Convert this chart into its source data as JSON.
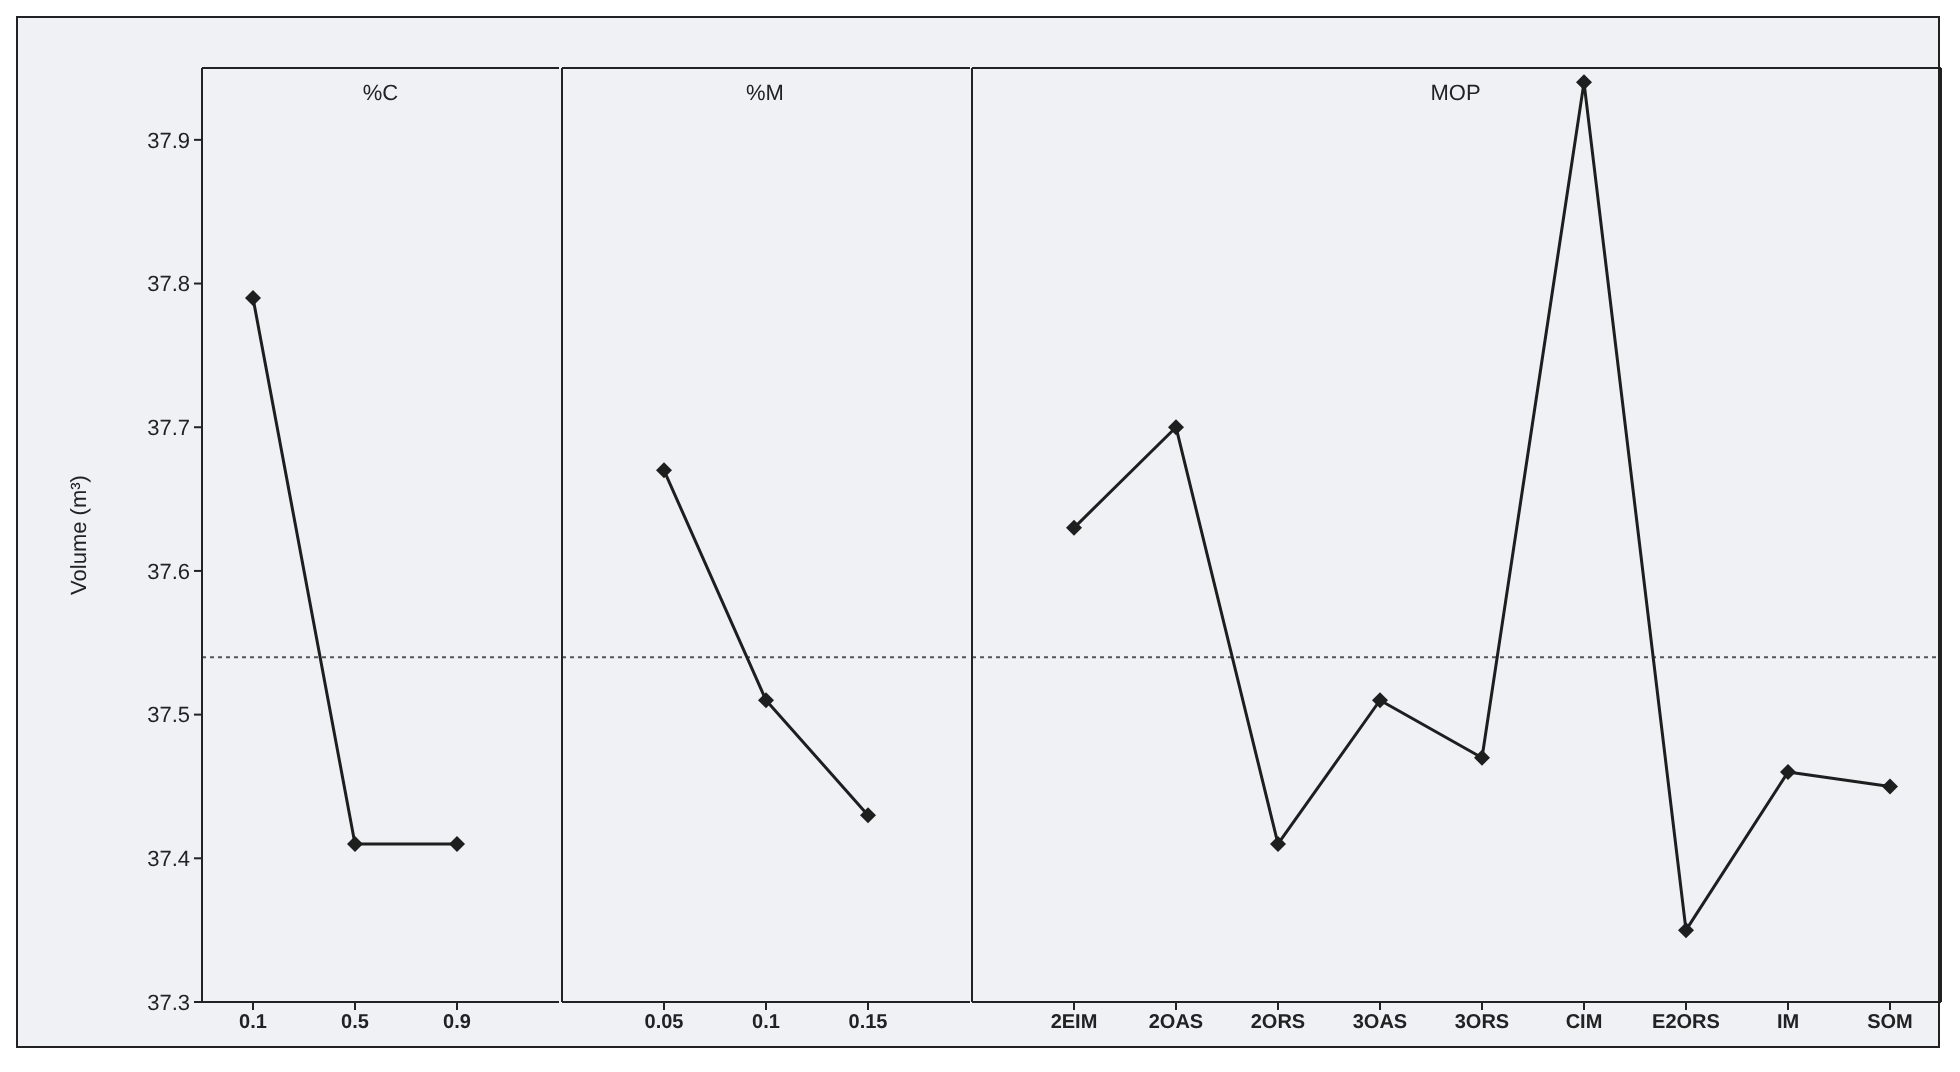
{
  "chart_data": [
    {
      "type": "line",
      "title": "%C",
      "ylabel": "Volume (m³)",
      "categories": [
        "0.1",
        "0.5",
        "0.9"
      ],
      "series": [
        {
          "color": "#1e1e1e",
          "values": [
            37.79,
            37.41,
            37.41
          ]
        }
      ],
      "ylim": [
        37.3,
        37.95
      ],
      "yticks": [
        37.3,
        37.4,
        37.5,
        37.6,
        37.7,
        37.8,
        37.9
      ],
      "marker": "diamond",
      "line_style": "solid",
      "ref_lines": [
        {
          "axis": "y",
          "value": 37.54,
          "line_style": "dotted",
          "color": "#555555"
        }
      ]
    },
    {
      "type": "line",
      "title": "%M",
      "categories": [
        "0.05",
        "0.1",
        "0.15"
      ],
      "series": [
        {
          "color": "#1e1e1e",
          "values": [
            37.67,
            37.51,
            37.43
          ]
        }
      ],
      "ylim": [
        37.3,
        37.95
      ],
      "yticks": [
        37.3,
        37.4,
        37.5,
        37.6,
        37.7,
        37.8,
        37.9
      ],
      "tick_labels": "x",
      "marker": "diamond",
      "line_style": "solid",
      "ref_lines": [
        {
          "axis": "y",
          "value": 37.54,
          "line_style": "dotted",
          "color": "#555555"
        }
      ]
    },
    {
      "type": "line",
      "title": "MOP",
      "categories": [
        "2EIM",
        "2OAS",
        "2ORS",
        "3OAS",
        "3ORS",
        "CIM",
        "E2ORS",
        "IM",
        "SOM"
      ],
      "series": [
        {
          "color": "#1e1e1e",
          "values": [
            37.63,
            37.7,
            37.41,
            37.51,
            37.47,
            37.94,
            37.35,
            37.46,
            37.45
          ]
        }
      ],
      "ylim": [
        37.3,
        37.95
      ],
      "yticks": [
        37.3,
        37.4,
        37.5,
        37.6,
        37.7,
        37.8,
        37.9
      ],
      "tick_labels": "x",
      "marker": "diamond",
      "line_style": "solid",
      "ref_lines": [
        {
          "axis": "y",
          "value": 37.54,
          "line_style": "dotted",
          "color": "#555555"
        }
      ]
    }
  ]
}
